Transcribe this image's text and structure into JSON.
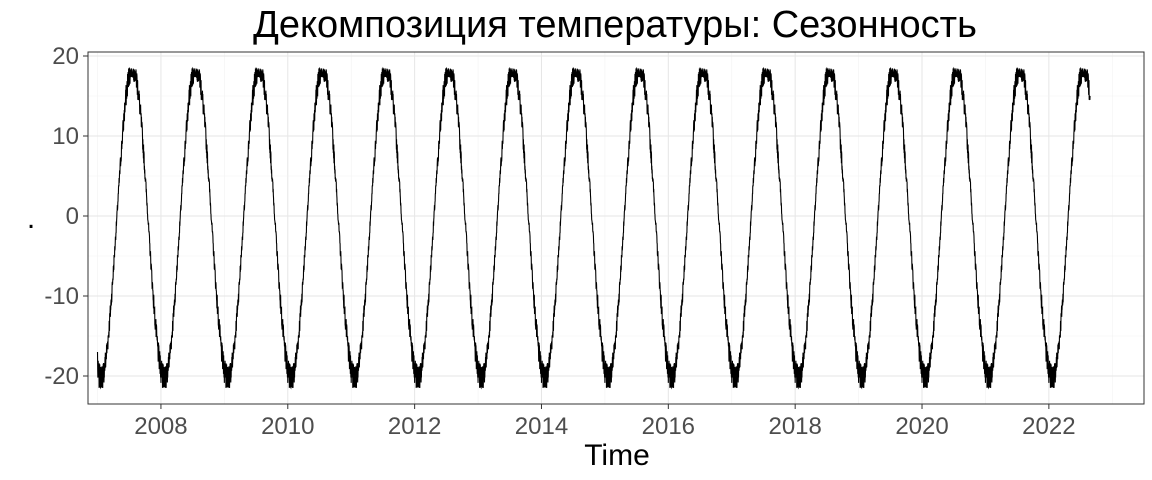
{
  "chart_data": {
    "type": "line",
    "title": "Декомпозиция температуры: Сезонность",
    "xlabel": "Time",
    "ylabel": ".",
    "xlim": [
      2006.85,
      2023.5
    ],
    "ylim": [
      -23.5,
      20.5
    ],
    "x_ticks": [
      2008,
      2010,
      2012,
      2014,
      2016,
      2018,
      2020,
      2022
    ],
    "y_ticks": [
      -20,
      -10,
      0,
      10,
      20
    ],
    "y_tick_labels": [
      "-20",
      "-10",
      "0",
      "10",
      "20"
    ],
    "grid": true,
    "series": [
      {
        "x_start": 2007.0,
        "x_end": 2022.65,
        "period_years": 1.0,
        "peak_phase_year_fraction": 0.55,
        "trough_phase_year_fraction": 0.06,
        "amplitude": 19.5,
        "mean": -0.8,
        "approx_max": 18.5,
        "approx_min": -21.5,
        "start_value": -17,
        "end_value": 15,
        "color": "#000000"
      }
    ]
  }
}
